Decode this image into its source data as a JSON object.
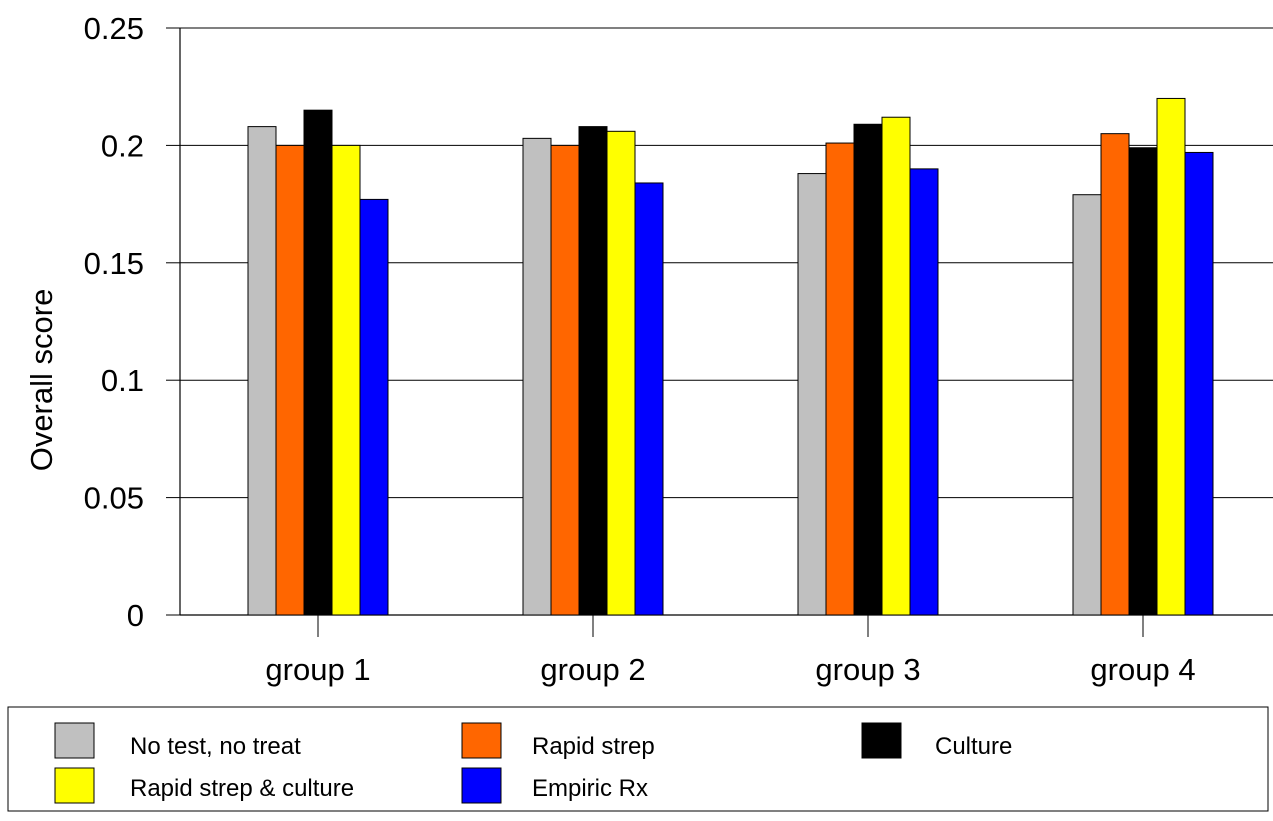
{
  "chart_data": {
    "type": "bar",
    "title": "",
    "xlabel": "",
    "ylabel": "Overall score",
    "ylim": [
      0,
      0.25
    ],
    "yticks": [
      "0",
      "0.05",
      "0.1",
      "0.15",
      "0.2",
      "0.25"
    ],
    "ytick_values": [
      0,
      0.05,
      0.1,
      0.15,
      0.2,
      0.25
    ],
    "grid": "horizontal",
    "legend_position": "bottom",
    "categories": [
      "group 1",
      "group 2",
      "group 3",
      "group 4"
    ],
    "series": [
      {
        "name": "No test, no treat",
        "color": "#c0c0c0",
        "values": [
          0.208,
          0.203,
          0.188,
          0.179
        ]
      },
      {
        "name": "Rapid strep",
        "color": "#ff6600",
        "values": [
          0.2,
          0.2,
          0.201,
          0.205
        ]
      },
      {
        "name": "Culture",
        "color": "#000000",
        "values": [
          0.215,
          0.208,
          0.209,
          0.199
        ]
      },
      {
        "name": "Rapid strep & culture",
        "color": "#ffff00",
        "values": [
          0.2,
          0.206,
          0.212,
          0.22
        ]
      },
      {
        "name": "Empiric Rx",
        "color": "#0000ff",
        "values": [
          0.177,
          0.184,
          0.19,
          0.197
        ]
      }
    ]
  }
}
